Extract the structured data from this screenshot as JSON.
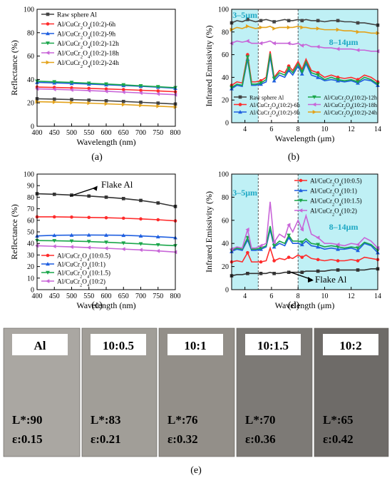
{
  "figure_panels": {
    "a": "(a)",
    "b": "(b)",
    "c": "(c)",
    "d": "(d)",
    "e": "(e)"
  },
  "chart_data": [
    {
      "panel": "(a)",
      "type": "line",
      "xlabel": "Wavelength (nm)",
      "ylabel": "Reflectance (%)",
      "xlim": [
        400,
        800
      ],
      "ylim": [
        0,
        100
      ],
      "xticks": [
        400,
        450,
        500,
        550,
        600,
        650,
        700,
        750,
        800
      ],
      "yticks": [
        0,
        20,
        40,
        60,
        80,
        100
      ],
      "legend_position": "top-left",
      "x": [
        400,
        450,
        500,
        550,
        600,
        650,
        700,
        750,
        800
      ],
      "series": [
        {
          "name": "Raw sphere Al",
          "color": "#444444",
          "marker": "square",
          "values": [
            23.5,
            23.2,
            22.8,
            22.3,
            21.8,
            21.2,
            20.5,
            19.8,
            19
          ]
        },
        {
          "name": "Al/CuCr2O4(10:2)-6h",
          "color": "#ff2b2b",
          "marker": "circle",
          "values": [
            33.5,
            33.2,
            32.8,
            32.4,
            31.9,
            31.4,
            30.8,
            30.2,
            29.5
          ]
        },
        {
          "name": "Al/CuCr2O4(10:2)-9h",
          "color": "#1f5fe0",
          "marker": "triangle-up",
          "values": [
            37.5,
            37.1,
            36.6,
            36.1,
            35.5,
            34.9,
            34.2,
            33.4,
            32.5
          ]
        },
        {
          "name": "Al/CuCr2O4(10:2)-12h",
          "color": "#1aa64a",
          "marker": "triangle-down",
          "values": [
            38.5,
            38,
            37.5,
            36.8,
            36.1,
            35.4,
            34.6,
            33.8,
            33
          ]
        },
        {
          "name": "Al/CuCr2O4(10:2)-18h",
          "color": "#c865d8",
          "marker": "triangle-left",
          "values": [
            32,
            31.6,
            31.1,
            30.5,
            29.9,
            29.2,
            28.5,
            27.7,
            27
          ]
        },
        {
          "name": "Al/CuCr2O4(10:2)-24h",
          "color": "#e3a21a",
          "marker": "triangle-right",
          "values": [
            21,
            20.7,
            20.3,
            19.8,
            19.2,
            18.6,
            17.9,
            17.2,
            16.5
          ]
        }
      ]
    },
    {
      "panel": "(b)",
      "type": "line",
      "xlabel": "Wavelength (μm)",
      "ylabel": "Infrared Emissivity (%)",
      "xlim": [
        3,
        14
      ],
      "ylim": [
        0,
        100
      ],
      "xticks": [
        4,
        6,
        8,
        10,
        12,
        14
      ],
      "yticks": [
        0,
        20,
        40,
        60,
        80,
        100
      ],
      "shaded_bands": [
        {
          "label": "3–5μm",
          "from": 3,
          "to": 5
        },
        {
          "label": "8–14μm",
          "from": 8,
          "to": 14
        }
      ],
      "legend_position": "bottom, two columns",
      "x": [
        3,
        3.4,
        3.8,
        4.2,
        4.5,
        4.8,
        5.2,
        5.6,
        5.9,
        6.2,
        6.6,
        7,
        7.3,
        7.6,
        8,
        8.3,
        8.6,
        9,
        9.5,
        10,
        10.5,
        11,
        11.5,
        12,
        12.5,
        13,
        13.5,
        14
      ],
      "series": [
        {
          "name": "Raw sphere Al",
          "color": "#444444",
          "marker": "square",
          "values": [
            88,
            90,
            89,
            91,
            90,
            89,
            90,
            91,
            90,
            89,
            90,
            91,
            90,
            90,
            91,
            90,
            91,
            90,
            90,
            89,
            90,
            90,
            89,
            89,
            88,
            88,
            87,
            86
          ]
        },
        {
          "name": "Al/CuCr2O4(10:2)-6h",
          "color": "#ff2b2b",
          "marker": "circle",
          "values": [
            33,
            36,
            35,
            60,
            36,
            36,
            37,
            40,
            63,
            40,
            46,
            44,
            50,
            46,
            54,
            47,
            56,
            46,
            44,
            40,
            42,
            40,
            39,
            40,
            38,
            42,
            40,
            36
          ]
        },
        {
          "name": "Al/CuCr2O4(10:2)-9h",
          "color": "#1f5fe0",
          "marker": "triangle-up",
          "values": [
            30,
            33,
            32,
            56,
            33,
            33,
            34,
            36,
            58,
            37,
            42,
            40,
            46,
            42,
            50,
            43,
            52,
            42,
            40,
            37,
            38,
            37,
            36,
            37,
            35,
            38,
            37,
            33
          ]
        },
        {
          "name": "Al/CuCr2O4(10:2)-12h",
          "color": "#1aa64a",
          "marker": "triangle-down",
          "values": [
            31,
            34,
            33,
            58,
            34,
            34,
            35,
            38,
            61,
            39,
            44,
            42,
            48,
            44,
            52,
            45,
            54,
            44,
            42,
            38,
            40,
            38,
            37,
            38,
            36,
            40,
            38,
            34
          ]
        },
        {
          "name": "Al/CuCr2O4(10:2)-18h",
          "color": "#c865d8",
          "marker": "triangle-left",
          "values": [
            70,
            72,
            71,
            72,
            70,
            70,
            70,
            71,
            72,
            70,
            70,
            70,
            70,
            69,
            70,
            68,
            69,
            67,
            67,
            66,
            66,
            65,
            65,
            65,
            64,
            64,
            63,
            63
          ]
        },
        {
          "name": "Al/CuCr2O4(10:2)-24h",
          "color": "#e3a21a",
          "marker": "triangle-right",
          "values": [
            82,
            84,
            83,
            85,
            84,
            83,
            84,
            84,
            85,
            83,
            84,
            84,
            84,
            84,
            85,
            84,
            84,
            83,
            83,
            82,
            82,
            82,
            81,
            81,
            80,
            80,
            79,
            79
          ]
        }
      ]
    },
    {
      "panel": "(c)",
      "type": "line",
      "xlabel": "Wavelength (nm)",
      "ylabel": "Reflectance (%)",
      "xlim": [
        400,
        800
      ],
      "ylim": [
        0,
        100
      ],
      "xticks": [
        400,
        450,
        500,
        550,
        600,
        650,
        700,
        750,
        800
      ],
      "yticks": [
        0,
        10,
        20,
        30,
        40,
        50,
        60,
        70,
        80,
        90,
        100
      ],
      "annotation": "Flake Al",
      "legend_position": "bottom-left",
      "x": [
        400,
        450,
        500,
        550,
        600,
        650,
        700,
        750,
        800
      ],
      "series": [
        {
          "name": "Flake Al",
          "color": "#333333",
          "marker": "square",
          "values": [
            83,
            82.5,
            81.8,
            81,
            80,
            78.8,
            77.2,
            75,
            72
          ]
        },
        {
          "name": "Al/CuCr2O4(10:0.5)",
          "color": "#ff2b2b",
          "marker": "circle",
          "values": [
            63,
            63,
            62.8,
            62.5,
            62.2,
            61.8,
            61.2,
            60.5,
            59.5
          ]
        },
        {
          "name": "Al/CuCr2O4(10:1)",
          "color": "#1f5fe0",
          "marker": "triangle-up",
          "values": [
            46.5,
            47,
            47.2,
            47.3,
            47.2,
            47,
            46.5,
            45.8,
            45
          ]
        },
        {
          "name": "Al/CuCr2O4(10:1.5)",
          "color": "#1aa64a",
          "marker": "triangle-down",
          "values": [
            42.5,
            42.3,
            42,
            41.6,
            41,
            40.3,
            39.6,
            38.8,
            38
          ]
        },
        {
          "name": "Al/CuCr2O4(10:2)",
          "color": "#c865d8",
          "marker": "triangle-left",
          "values": [
            38,
            37.5,
            37,
            36.4,
            35.8,
            35.1,
            34.4,
            33.5,
            32.5
          ]
        }
      ]
    },
    {
      "panel": "(d)",
      "type": "line",
      "xlabel": "Wavelength (μm)",
      "ylabel": "Infrared Emissivity (%)",
      "xlim": [
        3,
        14
      ],
      "ylim": [
        0,
        100
      ],
      "xticks": [
        4,
        6,
        8,
        10,
        12,
        14
      ],
      "yticks": [
        0,
        20,
        40,
        60,
        80,
        100
      ],
      "shaded_bands": [
        {
          "label": "3–5μm",
          "from": 3,
          "to": 5
        },
        {
          "label": "8–14μm",
          "from": 8,
          "to": 14
        }
      ],
      "annotation": "Flake Al",
      "legend_position": "top-right",
      "x": [
        3,
        3.4,
        3.8,
        4.2,
        4.5,
        4.8,
        5.2,
        5.6,
        5.9,
        6.2,
        6.6,
        7,
        7.3,
        7.6,
        8,
        8.3,
        8.6,
        9,
        9.5,
        10,
        10.5,
        11,
        11.5,
        12,
        12.5,
        13,
        13.5,
        14
      ],
      "series": [
        {
          "name": "Al/CuCr2O4(10:0.5)",
          "color": "#ff2b2b",
          "marker": "circle",
          "values": [
            24,
            25,
            24,
            32,
            24,
            24,
            24,
            25,
            36,
            25,
            27,
            26,
            28,
            27,
            30,
            28,
            30,
            27,
            26,
            25,
            26,
            25,
            25,
            26,
            25,
            28,
            27,
            26
          ]
        },
        {
          "name": "Al/CuCr2O4(10:1)",
          "color": "#1f5fe0",
          "marker": "triangle-up",
          "values": [
            33,
            35,
            34,
            43,
            34,
            34,
            35,
            37,
            52,
            37,
            40,
            38,
            45,
            40,
            40,
            39,
            42,
            38,
            37,
            35,
            36,
            35,
            35,
            36,
            34,
            40,
            38,
            32
          ]
        },
        {
          "name": "Al/CuCr2O4(10:1.5)",
          "color": "#1aa64a",
          "marker": "triangle-down",
          "values": [
            34,
            36,
            35,
            45,
            35,
            35,
            36,
            38,
            55,
            38,
            42,
            40,
            47,
            42,
            42,
            41,
            44,
            40,
            39,
            37,
            38,
            37,
            36,
            37,
            36,
            41,
            39,
            34
          ]
        },
        {
          "name": "Al/CuCr2O4(10:2)",
          "color": "#c865d8",
          "marker": "triangle-left",
          "values": [
            35,
            37,
            36,
            52,
            36,
            36,
            38,
            40,
            76,
            41,
            48,
            45,
            56,
            50,
            60,
            52,
            64,
            48,
            45,
            40,
            40,
            39,
            38,
            40,
            39,
            45,
            42,
            36
          ]
        },
        {
          "name": "Flake Al",
          "color": "#333333",
          "marker": "square",
          "values": [
            12,
            13,
            13,
            14,
            14,
            14,
            14,
            14,
            15,
            14,
            14,
            15,
            15,
            15,
            15,
            15,
            16,
            16,
            16,
            16,
            17,
            17,
            17,
            17,
            17,
            17,
            18,
            18
          ]
        }
      ]
    }
  ],
  "samples": [
    {
      "label": "Al",
      "lightness": "L*:90",
      "emissivity": "ε:0.15"
    },
    {
      "label": "10:0.5",
      "lightness": "L*:83",
      "emissivity": "ε:0.21"
    },
    {
      "label": "10:1",
      "lightness": "L*:76",
      "emissivity": "ε:0.32"
    },
    {
      "label": "10:1.5",
      "lightness": "L*:70",
      "emissivity": "ε:0.36"
    },
    {
      "label": "10:2",
      "lightness": "L*:65",
      "emissivity": "ε:0.42"
    }
  ],
  "sample_colors": [
    "#aaa7a2",
    "#a19e98",
    "#938f89",
    "#7d7a76",
    "#6e6b68"
  ]
}
